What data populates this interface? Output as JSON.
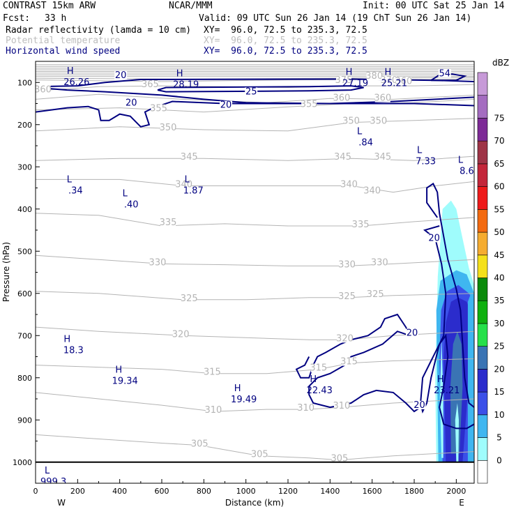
{
  "header": {
    "model": "CONTRAST 15km ARW",
    "org": "NCAR/MMM",
    "init": "Init: 00 UTC Sat 25 Jan 14",
    "fcst_label": "Fcst:",
    "fcst_value": "33 h",
    "valid": "Valid: 09 UTC Sun 26 Jan 14 (19 ChT Sun 26 Jan 14)",
    "fields": [
      {
        "name": "Radar reflectivity (lamda = 10 cm)",
        "xy": "XY=  96.0, 72.5 to 235.3, 72.5",
        "color": "#000000"
      },
      {
        "name": "Potential temperature",
        "xy": "XY=  96.0, 72.5 to 235.3, 72.5",
        "color": "#bdbdbd"
      },
      {
        "name": "Horizontal wind speed",
        "xy": "XY=  96.0, 72.5 to 235.3, 72.5",
        "color": "#000080"
      }
    ]
  },
  "chart_data": {
    "type": "cross-section",
    "xlabel": "Distance (km)",
    "ylabel": "Pressure (hPa)",
    "xlim": [
      0,
      2085
    ],
    "ylim": [
      50,
      1050
    ],
    "x_ticks": [
      0,
      200,
      400,
      600,
      800,
      1000,
      1200,
      1400,
      1600,
      1800,
      2000
    ],
    "y_ticks": [
      100,
      200,
      300,
      400,
      500,
      600,
      700,
      800,
      900,
      1000
    ],
    "x_end_labels": {
      "left": "W",
      "right": "E"
    },
    "colorbar": {
      "title": "dBZ",
      "levels": [
        0,
        5,
        10,
        15,
        20,
        25,
        30,
        35,
        40,
        45,
        50,
        55,
        60,
        65,
        70,
        75
      ],
      "colors": [
        "#ffffff",
        "#9ffcfc",
        "#3fb6f0",
        "#3b50e8",
        "#2b2ccc",
        "#3a74b4",
        "#26e04a",
        "#0fb00f",
        "#0b8a0b",
        "#f5e01a",
        "#f5ac30",
        "#f36a10",
        "#ee1a1a",
        "#c3263a",
        "#9e3446",
        "#7d2a96",
        "#a46cc0",
        "#c79ad8"
      ]
    },
    "theta_labels": [
      {
        "text": "375",
        "x": 1465,
        "p": 98
      },
      {
        "text": "380",
        "x": 1610,
        "p": 88
      },
      {
        "text": "370",
        "x": 1680,
        "p": 98
      },
      {
        "text": "360",
        "x": 1750,
        "p": 100
      },
      {
        "text": "365",
        "x": 545,
        "p": 108
      },
      {
        "text": "360",
        "x": 35,
        "p": 120
      },
      {
        "text": "360",
        "x": 1455,
        "p": 140
      },
      {
        "text": "360",
        "x": 1650,
        "p": 140
      },
      {
        "text": "355",
        "x": 585,
        "p": 165
      },
      {
        "text": "355",
        "x": 1300,
        "p": 155
      },
      {
        "text": "350",
        "x": 630,
        "p": 210
      },
      {
        "text": "350",
        "x": 1500,
        "p": 195
      },
      {
        "text": "350",
        "x": 1630,
        "p": 195
      },
      {
        "text": "345",
        "x": 730,
        "p": 280
      },
      {
        "text": "345",
        "x": 1460,
        "p": 280
      },
      {
        "text": "345",
        "x": 1650,
        "p": 280
      },
      {
        "text": "340",
        "x": 705,
        "p": 345
      },
      {
        "text": "340",
        "x": 1490,
        "p": 345
      },
      {
        "text": "340",
        "x": 1600,
        "p": 360
      },
      {
        "text": "335",
        "x": 630,
        "p": 435
      },
      {
        "text": "335",
        "x": 1545,
        "p": 440
      },
      {
        "text": "330",
        "x": 580,
        "p": 530
      },
      {
        "text": "330",
        "x": 1480,
        "p": 535
      },
      {
        "text": "330",
        "x": 1635,
        "p": 530
      },
      {
        "text": "325",
        "x": 730,
        "p": 615
      },
      {
        "text": "325",
        "x": 1480,
        "p": 610
      },
      {
        "text": "325",
        "x": 1615,
        "p": 605
      },
      {
        "text": "320",
        "x": 690,
        "p": 700
      },
      {
        "text": "320",
        "x": 1470,
        "p": 710
      },
      {
        "text": "315",
        "x": 840,
        "p": 790
      },
      {
        "text": "315",
        "x": 1345,
        "p": 780
      },
      {
        "text": "315",
        "x": 1490,
        "p": 765
      },
      {
        "text": "310",
        "x": 845,
        "p": 880
      },
      {
        "text": "310",
        "x": 1285,
        "p": 875
      },
      {
        "text": "310",
        "x": 1455,
        "p": 870
      },
      {
        "text": "305",
        "x": 780,
        "p": 960
      },
      {
        "text": "305",
        "x": 1065,
        "p": 985
      },
      {
        "text": "305",
        "x": 1445,
        "p": 995
      }
    ],
    "wind_labels": [
      {
        "text": "20",
        "x": 405,
        "p": 86
      },
      {
        "text": "25",
        "x": 1025,
        "p": 125
      },
      {
        "text": "20",
        "x": 455,
        "p": 152
      },
      {
        "text": "20",
        "x": 905,
        "p": 157
      },
      {
        "text": "54",
        "x": 1945,
        "p": 82
      },
      {
        "text": "20",
        "x": 1895,
        "p": 472
      },
      {
        "text": "20",
        "x": 1790,
        "p": 697
      },
      {
        "text": "20",
        "x": 1825,
        "p": 868
      }
    ],
    "extrema": [
      {
        "kind": "H",
        "value": "26.26",
        "x": 195,
        "p": 95
      },
      {
        "kind": "H",
        "value": "28.19",
        "x": 715,
        "p": 100
      },
      {
        "kind": "H",
        "value": "27.19",
        "x": 1520,
        "p": 97
      },
      {
        "kind": "H",
        "value": "25.21",
        "x": 1705,
        "p": 97
      },
      {
        "kind": "L",
        "value": ".84",
        "x": 1570,
        "p": 238
      },
      {
        "kind": "L",
        "value": "7.33",
        "x": 1855,
        "p": 282
      },
      {
        "kind": "L",
        "value": "8.6",
        "x": 2050,
        "p": 305
      },
      {
        "kind": "L",
        "value": ".34",
        "x": 190,
        "p": 352
      },
      {
        "kind": "L",
        "value": ".40",
        "x": 455,
        "p": 385
      },
      {
        "kind": "L",
        "value": "1.87",
        "x": 750,
        "p": 352
      },
      {
        "kind": "H",
        "value": "18.3",
        "x": 180,
        "p": 730
      },
      {
        "kind": "H",
        "value": "19.34",
        "x": 425,
        "p": 803
      },
      {
        "kind": "H",
        "value": "19.49",
        "x": 990,
        "p": 847
      },
      {
        "kind": "H",
        "value": "22.43",
        "x": 1350,
        "p": 825
      },
      {
        "kind": "H",
        "value": "23.21",
        "x": 1955,
        "p": 825
      },
      {
        "kind": "L",
        "value": "999.3",
        "x": 85,
        "p": 1042
      }
    ]
  }
}
